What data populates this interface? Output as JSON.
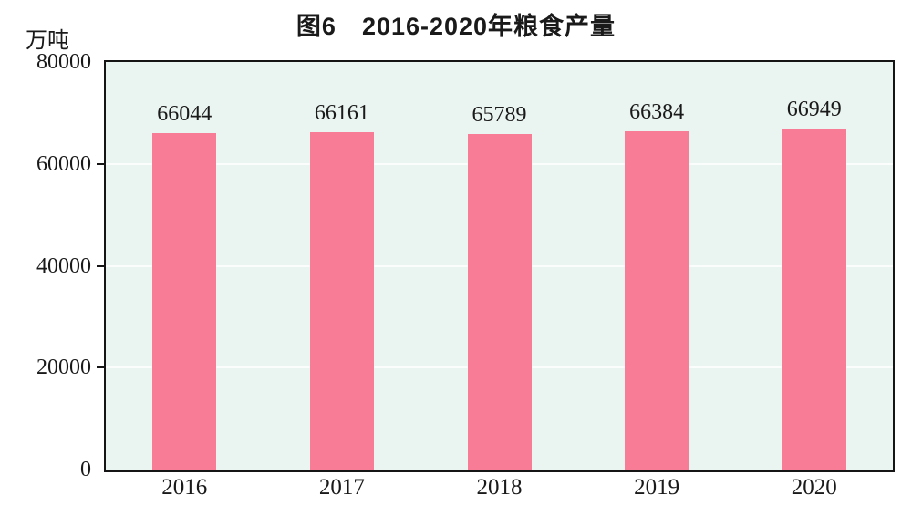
{
  "chart_data": {
    "type": "bar",
    "title": "图6　2016-2020年粮食产量",
    "unit_label": "万吨",
    "categories": [
      "2016",
      "2017",
      "2018",
      "2019",
      "2020"
    ],
    "values": [
      66044,
      66161,
      65789,
      66384,
      66949
    ],
    "value_labels": [
      "66044",
      "66161",
      "65789",
      "66384",
      "66949"
    ],
    "xlabel": "",
    "ylabel": "万吨",
    "ylim": [
      0,
      80000
    ],
    "yticks": [
      0,
      20000,
      40000,
      60000,
      80000
    ],
    "ytick_labels": [
      "0",
      "20000",
      "40000",
      "60000",
      "80000"
    ],
    "legend": "none",
    "grid": "horizontal-white-lines-at-yticks",
    "colors": {
      "bar": "#F87C96",
      "plot_background": "#EAF4F0",
      "gridline": "#FBFDFC",
      "axis_border": "#151515",
      "text": "#1a1a1a",
      "page_background": "#ffffff"
    }
  }
}
